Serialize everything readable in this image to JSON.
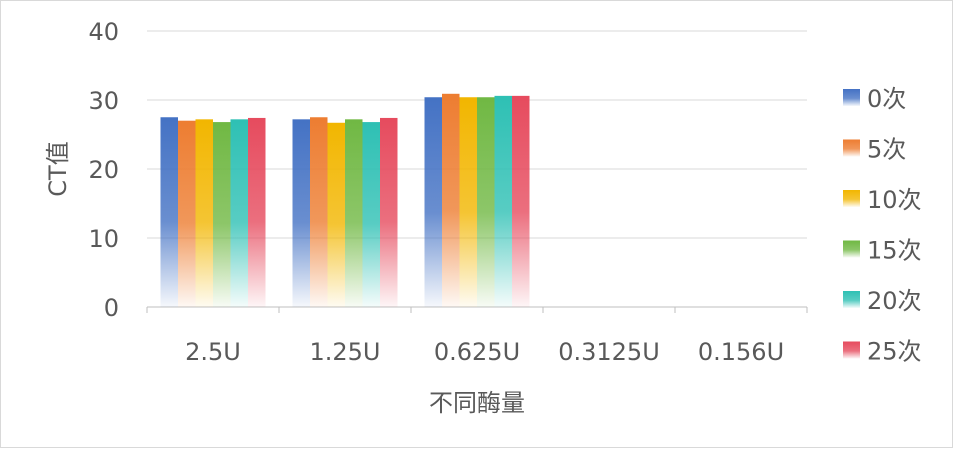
{
  "chart_data": {
    "type": "bar",
    "categories": [
      "2.5U",
      "1.25U",
      "0.625U",
      "0.3125U",
      "0.156U"
    ],
    "series": [
      {
        "name": "0次",
        "color": "#4472C4",
        "values": [
          27.5,
          27.2,
          30.4,
          null,
          null
        ]
      },
      {
        "name": "5次",
        "color": "#ED7D31",
        "values": [
          27.0,
          27.5,
          30.9,
          null,
          null
        ]
      },
      {
        "name": "10次",
        "color": "#F2B600",
        "values": [
          27.2,
          26.7,
          30.4,
          null,
          null
        ]
      },
      {
        "name": "15次",
        "color": "#70B843",
        "values": [
          26.8,
          27.2,
          30.4,
          null,
          null
        ]
      },
      {
        "name": "20次",
        "color": "#2EC0B4",
        "values": [
          27.2,
          26.8,
          30.6,
          null,
          null
        ]
      },
      {
        "name": "25次",
        "color": "#E64B5E",
        "values": [
          27.4,
          27.4,
          30.6,
          null,
          null
        ]
      }
    ],
    "xlabel": "不同酶量",
    "ylabel": "CT值",
    "ylim": [
      0,
      40
    ],
    "yticks": [
      "0",
      "10",
      "20",
      "30",
      "40"
    ],
    "grid": true,
    "legend": "right"
  }
}
